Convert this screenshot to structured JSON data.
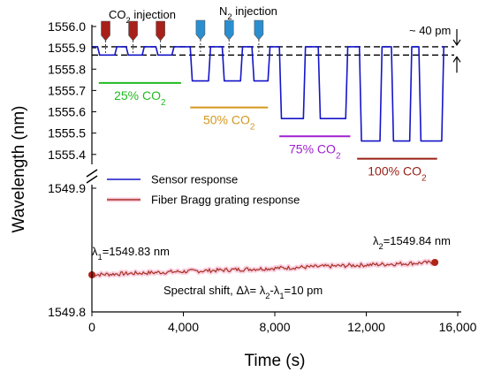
{
  "chart_data": {
    "type": "line",
    "xlabel": "Time (s)",
    "ylabel": "Wavelength (nm)",
    "xlim": [
      0,
      16000
    ],
    "x_ticks": [
      "0",
      "4,000",
      "8,000",
      "12,000",
      "16,000"
    ],
    "x_tick_values": [
      0,
      4000,
      8000,
      12000,
      16000
    ],
    "y_upper": {
      "ylim": [
        1555.37,
        1556.0
      ],
      "ticks": [
        "1556.0",
        "1555.9",
        "1555.8",
        "1555.7",
        "1555.6",
        "1555.5",
        "1555.4"
      ],
      "tick_values": [
        1556.0,
        1555.9,
        1555.8,
        1555.7,
        1555.6,
        1555.5,
        1555.4
      ]
    },
    "y_lower": {
      "ylim": [
        1549.8,
        1549.9
      ],
      "ticks": [
        "1549.9",
        "1549.8"
      ],
      "tick_values": [
        1549.9,
        1549.8
      ]
    },
    "axis_break": true,
    "legend": {
      "placement": "center-left",
      "entries": [
        {
          "label": "Sensor response",
          "color": "#1515c8"
        },
        {
          "label": "Fiber Bragg grating response",
          "color": "#a83226"
        }
      ]
    },
    "series": [
      {
        "name": "Sensor response",
        "color": "#1515c8",
        "baseline": 1555.905,
        "cycles": [
          {
            "start": 250,
            "end": 1000,
            "low": 1555.866
          },
          {
            "start": 1500,
            "end": 2200,
            "low": 1555.866
          },
          {
            "start": 2800,
            "end": 3500,
            "low": 1555.866
          },
          {
            "start": 4300,
            "end": 5100,
            "low": 1555.745
          },
          {
            "start": 5700,
            "end": 6500,
            "low": 1555.745
          },
          {
            "start": 7000,
            "end": 7700,
            "low": 1555.745
          },
          {
            "start": 8200,
            "end": 9250,
            "low": 1555.568
          },
          {
            "start": 9900,
            "end": 11100,
            "low": 1555.568
          },
          {
            "start": 11700,
            "end": 12600,
            "low": 1555.463
          },
          {
            "start": 13100,
            "end": 13900,
            "low": 1555.463
          },
          {
            "start": 14300,
            "end": 15300,
            "low": 1555.463
          }
        ]
      },
      {
        "name": "Fiber Bragg grating response",
        "color": "#a83226",
        "x": [
          0,
          15000
        ],
        "y": [
          1549.83,
          1549.84
        ]
      }
    ],
    "annotations": {
      "co2_injection": {
        "base": "CO",
        "sub": "2",
        "rest": " injection",
        "color": "#a8201a",
        "times": [
          600,
          1800,
          3000
        ]
      },
      "n2_injection": {
        "base": "N",
        "sub": "2",
        "rest": " injection",
        "color": "#2a8fd0",
        "times": [
          4750,
          6000,
          7300
        ]
      },
      "shift_label": "~ 40 pm",
      "reference_lines": [
        1555.905,
        1555.866
      ],
      "groups": [
        {
          "label": "25% CO",
          "sub": "2",
          "color": "#22bb22",
          "x_range": [
            300,
            3900
          ],
          "y": 1555.735
        },
        {
          "label": "50% CO",
          "sub": "2",
          "color": "#d4981f",
          "x_range": [
            4300,
            7700
          ],
          "y": 1555.62
        },
        {
          "label": "75% CO",
          "sub": "2",
          "color": "#a020d0",
          "x_range": [
            8200,
            11300
          ],
          "y": 1555.485
        },
        {
          "label": "100% CO",
          "sub": "2",
          "color": "#992015",
          "x_range": [
            11600,
            15100
          ],
          "y": 1555.38
        }
      ],
      "lambda1": {
        "sym": "λ",
        "sub": "1",
        "text": "=1549.83 nm"
      },
      "lambda2": {
        "sym": "λ",
        "sub": "2",
        "text": "=1549.84 nm"
      },
      "spectral_shift": {
        "text1": "Spectral shift, Δλ= λ",
        "sub1": "2",
        "text2": "-λ",
        "sub2": "1",
        "text3": "=10 pm"
      }
    }
  }
}
